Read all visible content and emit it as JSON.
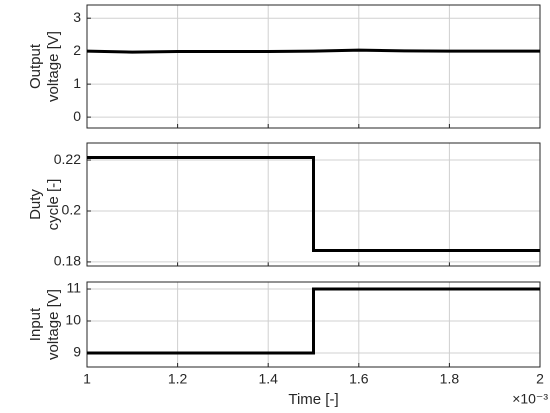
{
  "chart_data": [
    {
      "type": "line",
      "ylabel": [
        "Output",
        "voltage [V]"
      ],
      "x": [
        1,
        1.1,
        1.2,
        1.3,
        1.4,
        1.5,
        1.6,
        1.7,
        1.8,
        1.9,
        2
      ],
      "series": [
        {
          "color": "#000000",
          "values": [
            2.0,
            1.97,
            1.99,
            1.99,
            1.99,
            2.0,
            2.03,
            2.01,
            2.0,
            2.0,
            2.0
          ]
        }
      ],
      "xlim": [
        1,
        2
      ],
      "xticks": [
        1,
        1.2,
        1.4,
        1.6,
        1.8,
        2
      ],
      "ylim": [
        -0.33,
        3.4
      ],
      "yticks": [
        0,
        1,
        2,
        3
      ],
      "grid": true
    },
    {
      "type": "line",
      "ylabel": [
        "Duty",
        "cycle [-]"
      ],
      "x": [
        1,
        1.5,
        1.5,
        2
      ],
      "series": [
        {
          "color": "#000000",
          "values": [
            0.221,
            0.221,
            0.1845,
            0.1845
          ]
        }
      ],
      "xlim": [
        1,
        2
      ],
      "xticks": [
        1,
        1.2,
        1.4,
        1.6,
        1.8,
        2
      ],
      "ylim": [
        0.1784,
        0.2267
      ],
      "yticks": [
        0.18,
        0.2,
        0.22
      ],
      "grid": true
    },
    {
      "type": "line",
      "ylabel": [
        "Input",
        "voltage [V]"
      ],
      "xlabel": "Time [-]",
      "x_multiplier": "×10⁻³",
      "x": [
        1,
        1.5,
        1.5,
        2
      ],
      "series": [
        {
          "color": "#000000",
          "values": [
            9,
            9,
            11,
            11
          ]
        }
      ],
      "xlim": [
        1,
        2
      ],
      "xticks": [
        1,
        1.2,
        1.4,
        1.6,
        1.8,
        2
      ],
      "ylim": [
        8.56,
        11.22
      ],
      "yticks": [
        9,
        10,
        11
      ],
      "grid": true
    }
  ]
}
